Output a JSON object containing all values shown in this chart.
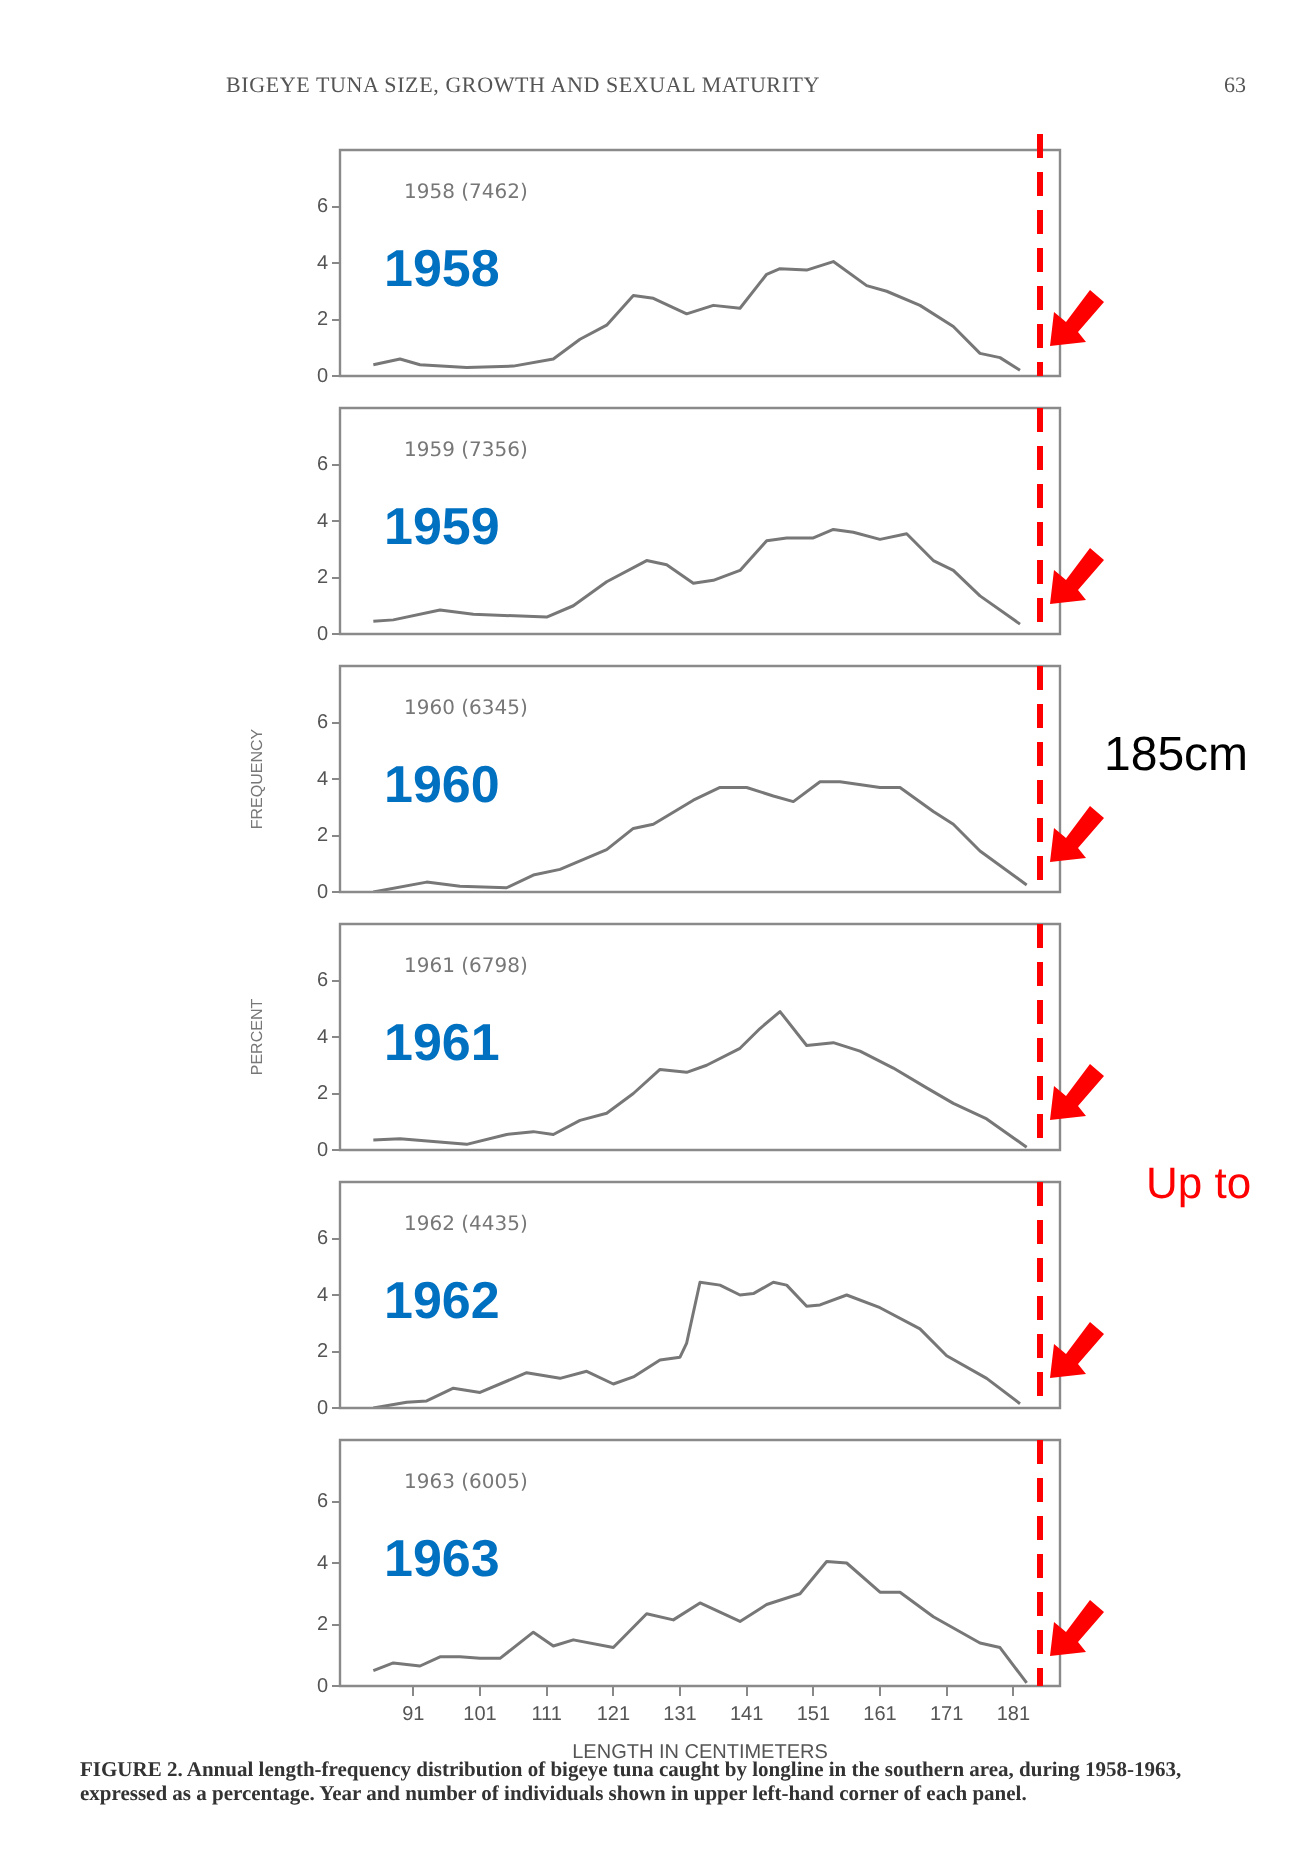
{
  "chart_data": [
    {
      "type": "line",
      "title": "BIGEYE TUNA SIZE, GROWTH AND SEXUAL MATURITY",
      "annotations": [
        "1958 (7462)",
        "1958",
        "63"
      ],
      "color": "#777777",
      "xlim": [
        80,
        188
      ],
      "ylim": [
        0,
        8
      ],
      "yticks": [
        0,
        2,
        4,
        6
      ],
      "xticks": [
        91,
        101,
        111,
        121,
        131,
        141,
        151,
        161,
        171,
        181
      ],
      "tick_labels": "y",
      "ref_lines": [
        {
          "axis": "x",
          "value": 185,
          "color": "#ff0000",
          "line_style": "dashed"
        }
      ],
      "x": [
        85,
        89,
        92,
        99,
        106,
        112,
        116,
        120,
        124,
        127,
        132,
        136,
        140,
        144,
        146,
        150,
        154,
        159,
        162,
        167,
        172,
        176,
        179,
        182
      ],
      "values": [
        0.4,
        0.6,
        0.4,
        0.3,
        0.35,
        0.6,
        1.3,
        1.8,
        2.85,
        2.75,
        2.2,
        2.5,
        2.4,
        3.6,
        3.8,
        3.75,
        4.05,
        3.2,
        3.0,
        2.5,
        1.75,
        0.8,
        0.65,
        0.2
      ]
    },
    {
      "type": "line",
      "annotations": [
        "1959 (7356)",
        "1959"
      ],
      "color": "#777777",
      "xlim": [
        80,
        188
      ],
      "ylim": [
        0,
        8
      ],
      "yticks": [
        0,
        2,
        4,
        6
      ],
      "xticks": [
        91,
        101,
        111,
        121,
        131,
        141,
        151,
        161,
        171,
        181
      ],
      "tick_labels": "y",
      "ref_lines": [
        {
          "axis": "x",
          "value": 185,
          "color": "#ff0000",
          "line_style": "dashed"
        }
      ],
      "x": [
        85,
        88,
        95,
        100,
        111,
        115,
        120,
        126,
        129,
        133,
        136,
        140,
        144,
        147,
        151,
        154,
        157,
        161,
        165,
        169,
        172,
        176,
        182
      ],
      "values": [
        0.45,
        0.5,
        0.85,
        0.7,
        0.6,
        1.0,
        1.85,
        2.6,
        2.45,
        1.8,
        1.9,
        2.25,
        3.3,
        3.4,
        3.4,
        3.7,
        3.6,
        3.35,
        3.55,
        2.6,
        2.25,
        1.35,
        0.35
      ]
    },
    {
      "type": "line",
      "annotations": [
        "1960 (6345)",
        "1960"
      ],
      "ylabel": "FREQUENCY",
      "color": "#777777",
      "xlim": [
        80,
        188
      ],
      "ylim": [
        0,
        8
      ],
      "yticks": [
        0,
        2,
        4,
        6
      ],
      "xticks": [
        91,
        101,
        111,
        121,
        131,
        141,
        151,
        161,
        171,
        181
      ],
      "tick_labels": "y",
      "ref_lines": [
        {
          "axis": "x",
          "value": 185,
          "color": "#ff0000",
          "line_style": "dashed",
          "label": "185cm"
        }
      ],
      "x": [
        85,
        93,
        98,
        105,
        109,
        113,
        120,
        124,
        127,
        133,
        137,
        141,
        145,
        148,
        152,
        155,
        161,
        164,
        169,
        172,
        176,
        183
      ],
      "values": [
        0,
        0.35,
        0.2,
        0.15,
        0.6,
        0.8,
        1.5,
        2.25,
        2.4,
        3.25,
        3.7,
        3.7,
        3.4,
        3.2,
        3.9,
        3.9,
        3.7,
        3.7,
        2.85,
        2.4,
        1.45,
        0.25
      ]
    },
    {
      "type": "line",
      "annotations": [
        "1961 (6798)",
        "1961"
      ],
      "ylabel": "PERCENT",
      "color": "#777777",
      "xlim": [
        80,
        188
      ],
      "ylim": [
        0,
        8
      ],
      "yticks": [
        0,
        2,
        4,
        6
      ],
      "xticks": [
        91,
        101,
        111,
        121,
        131,
        141,
        151,
        161,
        171,
        181
      ],
      "tick_labels": "y",
      "ref_lines": [
        {
          "axis": "x",
          "value": 185,
          "color": "#ff0000",
          "line_style": "dashed"
        }
      ],
      "x": [
        85,
        89,
        99,
        105,
        109,
        112,
        116,
        120,
        124,
        128,
        132,
        135,
        140,
        143,
        146,
        150,
        154,
        158,
        163,
        168,
        172,
        177,
        183
      ],
      "values": [
        0.35,
        0.4,
        0.2,
        0.55,
        0.65,
        0.55,
        1.05,
        1.3,
        2.0,
        2.85,
        2.75,
        3.0,
        3.6,
        4.3,
        4.9,
        3.7,
        3.8,
        3.5,
        2.9,
        2.2,
        1.65,
        1.1,
        0.1
      ]
    },
    {
      "type": "line",
      "annotations": [
        "1962 (4435)",
        "1962",
        "Up to"
      ],
      "color": "#777777",
      "xlim": [
        80,
        188
      ],
      "ylim": [
        0,
        8
      ],
      "yticks": [
        0,
        2,
        4,
        6
      ],
      "xticks": [
        91,
        101,
        111,
        121,
        131,
        141,
        151,
        161,
        171,
        181
      ],
      "tick_labels": "y",
      "ref_lines": [
        {
          "axis": "x",
          "value": 185,
          "color": "#ff0000",
          "line_style": "dashed"
        }
      ],
      "x": [
        85,
        90,
        93,
        97,
        101,
        108,
        113,
        117,
        121,
        124,
        128,
        131,
        132,
        134,
        137,
        140,
        142,
        145,
        147,
        150,
        152,
        156,
        161,
        167,
        171,
        177,
        182
      ],
      "values": [
        0,
        0.2,
        0.25,
        0.7,
        0.55,
        1.25,
        1.05,
        1.3,
        0.85,
        1.1,
        1.7,
        1.8,
        2.3,
        4.45,
        4.35,
        4.0,
        4.05,
        4.45,
        4.35,
        3.6,
        3.65,
        4.0,
        3.55,
        2.8,
        1.85,
        1.05,
        0.15
      ]
    },
    {
      "type": "line",
      "annotations": [
        "1963 (6005)",
        "1963",
        "FIGURE 2. Annual length-frequency distribution of bigeye tuna caught by longline in the southern area, during 1958-1963, expressed as a percentage. Year and number of individuals shown in upper left-hand corner of each panel."
      ],
      "xlabel": "LENGTH IN CENTIMETERS",
      "color": "#777777",
      "xlim": [
        80,
        188
      ],
      "ylim": [
        0,
        8
      ],
      "yticks": [
        0,
        2,
        4,
        6
      ],
      "xticks": [
        91,
        101,
        111,
        121,
        131,
        141,
        151,
        161,
        171,
        181
      ],
      "ref_lines": [
        {
          "axis": "x",
          "value": 185,
          "color": "#ff0000",
          "line_style": "dashed"
        }
      ],
      "x": [
        85,
        88,
        92,
        95,
        98,
        101,
        104,
        109,
        112,
        115,
        121,
        126,
        130,
        134,
        140,
        144,
        149,
        153,
        156,
        161,
        164,
        169,
        176,
        179,
        183
      ],
      "values": [
        0.5,
        0.75,
        0.65,
        0.95,
        0.95,
        0.9,
        0.9,
        1.75,
        1.3,
        1.5,
        1.25,
        2.35,
        2.15,
        2.7,
        2.1,
        2.65,
        3.0,
        4.05,
        4.0,
        3.05,
        3.05,
        2.25,
        1.4,
        1.25,
        0.1
      ]
    }
  ]
}
